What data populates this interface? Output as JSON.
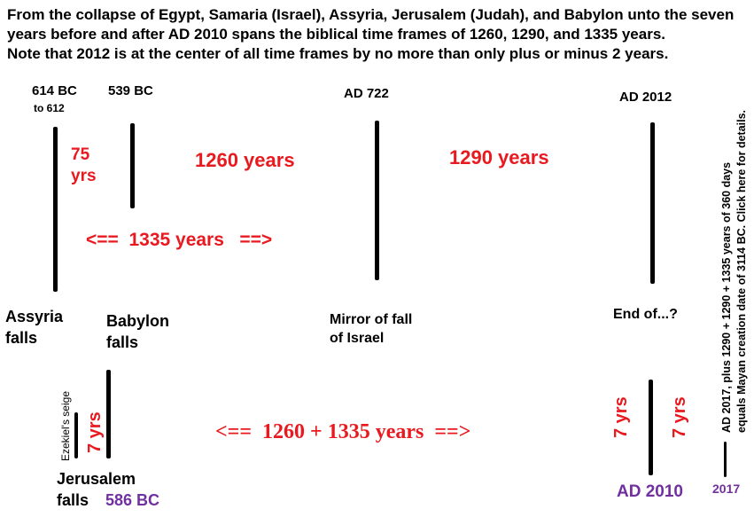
{
  "header": {
    "line1": "From the collapse of Egypt, Samaria (Israel), Assyria, Jerusalem (Judah), and Babylon unto the seven",
    "line2": "years before and after AD 2010 spans the biblical time frames of 1260, 1290, and 1335 years.",
    "line3": "Note that 2012 is at the center of all time frames by no more than only plus or minus 2 years."
  },
  "dates": {
    "d614": "614 BC",
    "d614_sub": "to 612",
    "d539": "539 BC",
    "ad722": "AD 722",
    "ad2012": "AD 2012",
    "bc586": "586 BC",
    "ad2010": "AD 2010",
    "y2017": "2017"
  },
  "spans": {
    "yrs75_num": "75",
    "yrs75_unit": "yrs",
    "y1260": "1260 years",
    "y1290": "1290 years",
    "y1335": "<==  1335 years   ==>",
    "combined": "<==  1260 + 1335 years  ==>",
    "seven_left": "7 yrs",
    "seven_mid": "7 yrs",
    "seven_right": "7 yrs"
  },
  "events": {
    "assyria_1": "Assyria",
    "assyria_2": "falls",
    "babylon_1": "Babylon",
    "babylon_2": "falls",
    "mirror_1": "Mirror of fall",
    "mirror_2": "of Israel",
    "end": "End of...?",
    "jerusalem_1": "Jerusalem",
    "jerusalem_2": "falls",
    "ezekiel": "Ezekiel's seige"
  },
  "side_note": {
    "line1": "AD 2017, plus 1290 + 1290 + 1335 years of 360 days",
    "line2": "equals Mayan creation date of 3114 BC. Click here for details."
  },
  "colors": {
    "red": "#e8191f",
    "purple": "#7030a0",
    "black": "#000000"
  }
}
